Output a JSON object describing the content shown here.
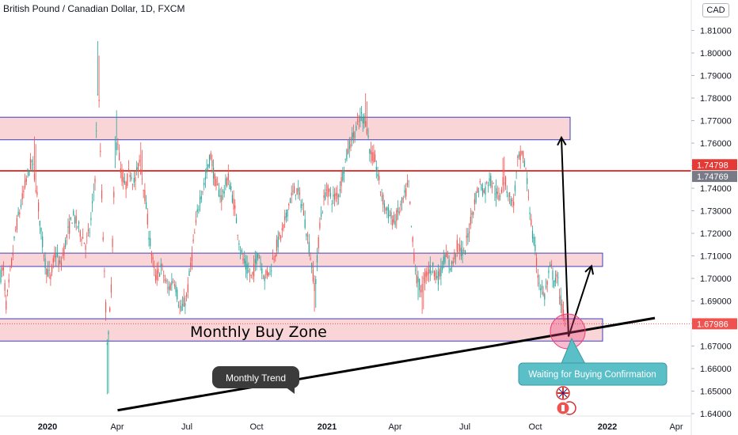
{
  "header": {
    "title": "British Pound / Canadian Dollar, 1D, FXCM",
    "currency": "CAD"
  },
  "annotations": {
    "buy_zone_label": "Monthly Buy Zone",
    "trend_label": "Monthly Trend",
    "confirmation_label": "Waiting for Buying Confirmation"
  },
  "colors": {
    "up_candle": "#26a69a",
    "down_candle": "#ef5350",
    "zone_fill": "#f7c3c6",
    "zone_border": "#3f3fb8",
    "resistance_line": "#e53935",
    "trend_line": "#000000",
    "callout_bg": "#5bbfc8",
    "dark_callout_bg": "#3b3b3b"
  },
  "chart_data": {
    "type": "candlestick",
    "title": "British Pound / Canadian Dollar, 1D, FXCM",
    "x_tick_labels": [
      "2020",
      "Apr",
      "Jul",
      "Oct",
      "2021",
      "Apr",
      "Jul",
      "Oct",
      "2022",
      "Apr"
    ],
    "y_tick_labels": [
      "1.64000",
      "1.65000",
      "1.66000",
      "1.67000",
      "1.68000",
      "1.69000",
      "1.70000",
      "1.71000",
      "1.72000",
      "1.73000",
      "1.74000",
      "1.75000",
      "1.76000",
      "1.77000",
      "1.78000",
      "1.79000",
      "1.80000",
      "1.81000"
    ],
    "ylim": [
      1.64,
      1.82
    ],
    "price_labels": [
      {
        "value": 1.74798,
        "text": "1.74798",
        "color": "#e53935"
      },
      {
        "value": 1.74769,
        "text": "1.74769",
        "color": "#787b86"
      },
      {
        "value": 1.67986,
        "text": "1.67986",
        "color": "#ef5350"
      }
    ],
    "last_price": 1.67986,
    "resistance_level": 1.7477,
    "zones": [
      {
        "top": 1.7715,
        "bottom": 1.7615
      },
      {
        "top": 1.7112,
        "bottom": 1.7053
      },
      {
        "top": 1.6821,
        "bottom": 1.6722
      }
    ],
    "trend_line": {
      "from": {
        "date": "2020-04",
        "value": 1.6415
      },
      "to": {
        "date": "2022-03",
        "value": 1.6824
      }
    },
    "projection_arrows": [
      {
        "from": {
          "date": "2021-11",
          "value": 1.6742
        },
        "to": {
          "date": "2021-12",
          "value": 1.7055
        }
      },
      {
        "from": {
          "date": "2021-11",
          "value": 1.6742
        },
        "to": {
          "date": "2021-11",
          "value": 1.7625
        }
      }
    ],
    "price_path": [
      [
        0,
        1.7
      ],
      [
        4,
        1.705
      ],
      [
        8,
        1.688
      ],
      [
        14,
        1.705
      ],
      [
        20,
        1.722
      ],
      [
        28,
        1.735
      ],
      [
        34,
        1.745
      ],
      [
        40,
        1.752
      ],
      [
        46,
        1.74
      ],
      [
        52,
        1.72
      ],
      [
        58,
        1.705
      ],
      [
        64,
        1.7
      ],
      [
        70,
        1.712
      ],
      [
        76,
        1.705
      ],
      [
        84,
        1.718
      ],
      [
        92,
        1.728
      ],
      [
        100,
        1.722
      ],
      [
        108,
        1.715
      ],
      [
        114,
        1.722
      ],
      [
        120,
        1.745
      ],
      [
        124,
        1.79
      ],
      [
        128,
        1.742
      ],
      [
        132,
        1.7
      ],
      [
        136,
        1.668
      ],
      [
        140,
        1.692
      ],
      [
        144,
        1.738
      ],
      [
        148,
        1.765
      ],
      [
        152,
        1.748
      ],
      [
        158,
        1.74
      ],
      [
        164,
        1.748
      ],
      [
        170,
        1.742
      ],
      [
        176,
        1.752
      ],
      [
        182,
        1.74
      ],
      [
        188,
        1.72
      ],
      [
        196,
        1.7
      ],
      [
        204,
        1.705
      ],
      [
        212,
        1.695
      ],
      [
        220,
        1.7
      ],
      [
        228,
        1.685
      ],
      [
        236,
        1.692
      ],
      [
        244,
        1.715
      ],
      [
        252,
        1.735
      ],
      [
        258,
        1.742
      ],
      [
        266,
        1.755
      ],
      [
        272,
        1.742
      ],
      [
        280,
        1.736
      ],
      [
        288,
        1.745
      ],
      [
        296,
        1.732
      ],
      [
        304,
        1.712
      ],
      [
        310,
        1.705
      ],
      [
        318,
        1.7
      ],
      [
        326,
        1.712
      ],
      [
        334,
        1.7
      ],
      [
        342,
        1.705
      ],
      [
        350,
        1.715
      ],
      [
        358,
        1.722
      ],
      [
        366,
        1.735
      ],
      [
        374,
        1.74
      ],
      [
        382,
        1.732
      ],
      [
        390,
        1.715
      ],
      [
        398,
        1.695
      ],
      [
        404,
        1.725
      ],
      [
        412,
        1.74
      ],
      [
        420,
        1.735
      ],
      [
        428,
        1.738
      ],
      [
        436,
        1.752
      ],
      [
        442,
        1.76
      ],
      [
        448,
        1.765
      ],
      [
        452,
        1.768
      ],
      [
        456,
        1.772
      ],
      [
        462,
        1.77
      ],
      [
        468,
        1.755
      ],
      [
        474,
        1.752
      ],
      [
        480,
        1.74
      ],
      [
        486,
        1.732
      ],
      [
        492,
        1.728
      ],
      [
        498,
        1.725
      ],
      [
        504,
        1.73
      ],
      [
        510,
        1.735
      ],
      [
        516,
        1.742
      ],
      [
        520,
        1.72
      ],
      [
        526,
        1.7
      ],
      [
        532,
        1.695
      ],
      [
        538,
        1.702
      ],
      [
        546,
        1.705
      ],
      [
        554,
        1.7
      ],
      [
        562,
        1.71
      ],
      [
        570,
        1.705
      ],
      [
        578,
        1.715
      ],
      [
        586,
        1.71
      ],
      [
        594,
        1.725
      ],
      [
        600,
        1.735
      ],
      [
        606,
        1.742
      ],
      [
        612,
        1.738
      ],
      [
        618,
        1.745
      ],
      [
        624,
        1.74
      ],
      [
        630,
        1.735
      ],
      [
        636,
        1.745
      ],
      [
        642,
        1.738
      ],
      [
        648,
        1.732
      ],
      [
        654,
        1.752
      ],
      [
        660,
        1.755
      ],
      [
        664,
        1.748
      ],
      [
        668,
        1.735
      ],
      [
        672,
        1.72
      ],
      [
        676,
        1.712
      ],
      [
        680,
        1.7
      ],
      [
        684,
        1.695
      ],
      [
        688,
        1.692
      ],
      [
        692,
        1.7
      ],
      [
        696,
        1.705
      ],
      [
        700,
        1.698
      ],
      [
        704,
        1.7
      ],
      [
        708,
        1.69
      ],
      [
        714,
        1.68
      ]
    ]
  }
}
